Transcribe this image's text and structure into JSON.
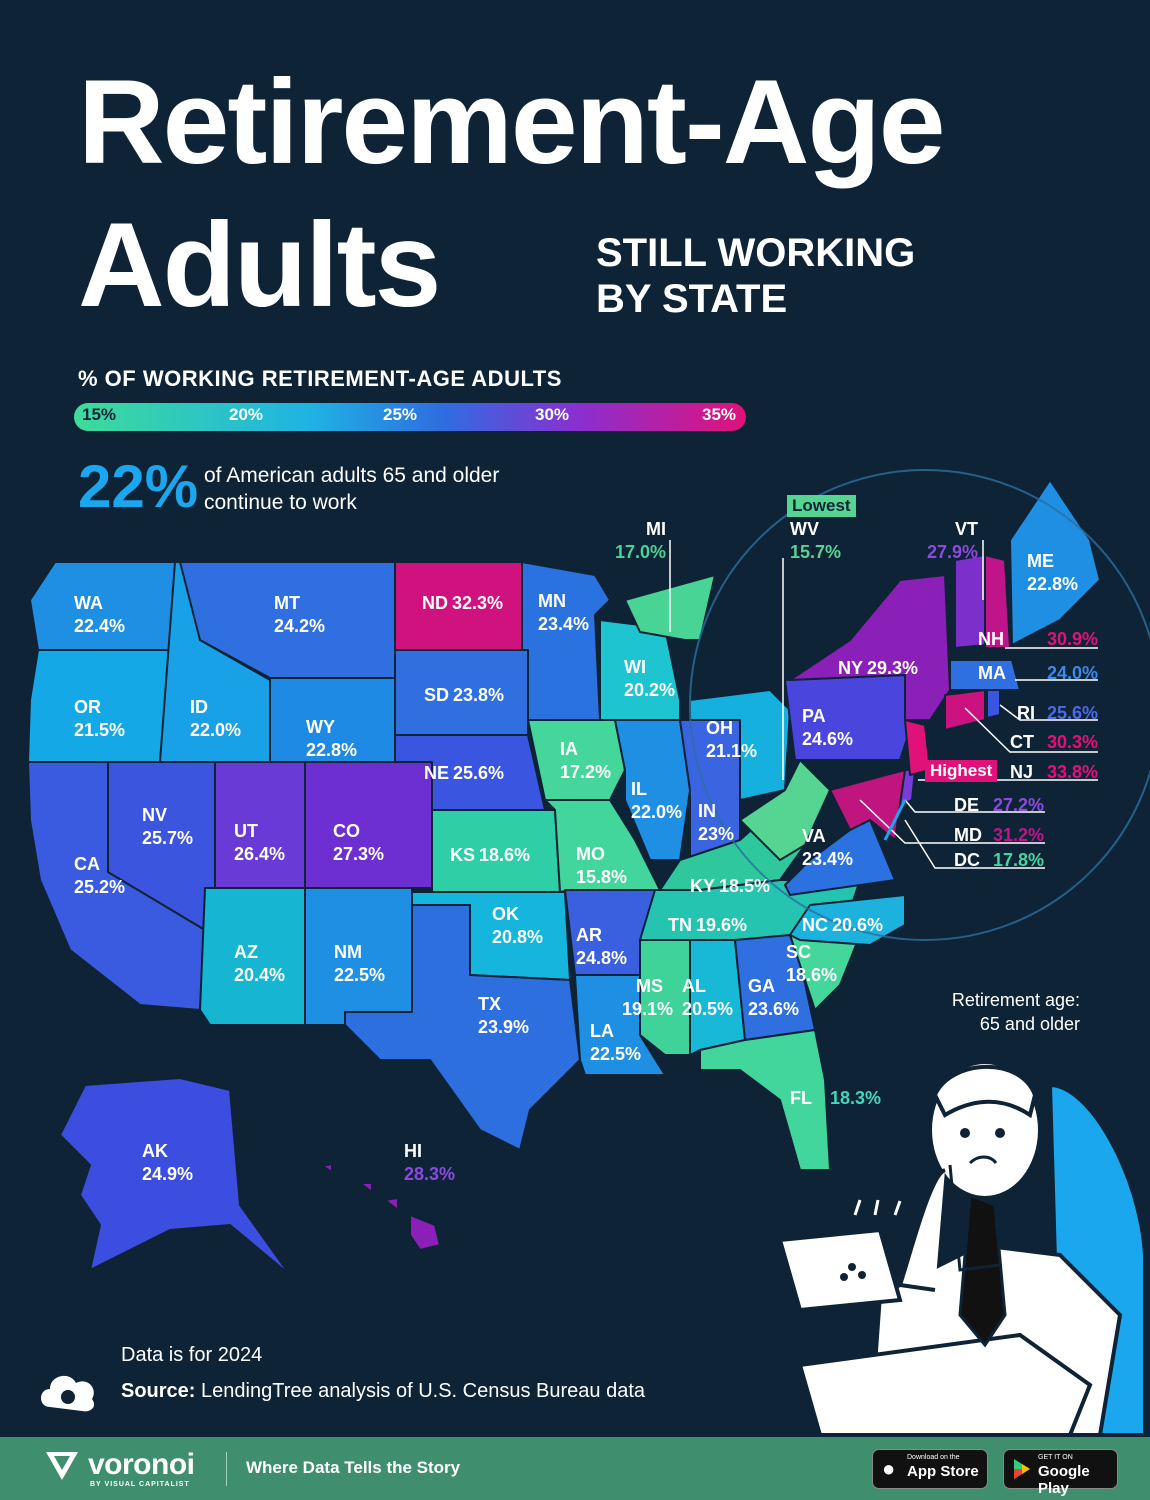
{
  "title_line1": "Retirement-Age",
  "title_line2": "Adults",
  "subtitle_line1": "STILL WORKING",
  "subtitle_line2": "BY STATE",
  "legend": {
    "title": "% OF WORKING RETIREMENT-AGE ADULTS",
    "ticks": [
      "15%",
      "20%",
      "25%",
      "30%",
      "35%"
    ],
    "colors": [
      "#3ddc9a",
      "#1fb3e4",
      "#2f6de0",
      "#8a2fd0",
      "#e0127a"
    ]
  },
  "headline_stat": {
    "value": "22%",
    "text": "of American adults 65 and older continue to work"
  },
  "chart_data": {
    "type": "choropleth map",
    "title": "Retirement-Age Adults Still Working by State",
    "unit": "%",
    "scale_range": [
      15,
      35
    ],
    "states": [
      {
        "abbr": "WA",
        "value": "22.4%"
      },
      {
        "abbr": "OR",
        "value": "21.5%"
      },
      {
        "abbr": "CA",
        "value": "25.2%"
      },
      {
        "abbr": "ID",
        "value": "22.0%"
      },
      {
        "abbr": "MT",
        "value": "24.2%"
      },
      {
        "abbr": "WY",
        "value": "22.8%"
      },
      {
        "abbr": "NV",
        "value": "25.7%"
      },
      {
        "abbr": "UT",
        "value": "26.4%"
      },
      {
        "abbr": "CO",
        "value": "27.3%"
      },
      {
        "abbr": "AZ",
        "value": "20.4%"
      },
      {
        "abbr": "NM",
        "value": "22.5%"
      },
      {
        "abbr": "ND",
        "value": "32.3%"
      },
      {
        "abbr": "SD",
        "value": "23.8%"
      },
      {
        "abbr": "NE",
        "value": "25.6%"
      },
      {
        "abbr": "KS",
        "value": "18.6%"
      },
      {
        "abbr": "OK",
        "value": "20.8%"
      },
      {
        "abbr": "TX",
        "value": "23.9%"
      },
      {
        "abbr": "MN",
        "value": "23.4%"
      },
      {
        "abbr": "IA",
        "value": "17.2%"
      },
      {
        "abbr": "MO",
        "value": "15.8%"
      },
      {
        "abbr": "AR",
        "value": "24.8%"
      },
      {
        "abbr": "LA",
        "value": "22.5%"
      },
      {
        "abbr": "WI",
        "value": "20.2%"
      },
      {
        "abbr": "IL",
        "value": "22.0%"
      },
      {
        "abbr": "MI",
        "value": "17.0%"
      },
      {
        "abbr": "IN",
        "value": "23%"
      },
      {
        "abbr": "OH",
        "value": "21.1%"
      },
      {
        "abbr": "KY",
        "value": "18.5%"
      },
      {
        "abbr": "TN",
        "value": "19.6%"
      },
      {
        "abbr": "MS",
        "value": "19.1%"
      },
      {
        "abbr": "AL",
        "value": "20.5%"
      },
      {
        "abbr": "GA",
        "value": "23.6%"
      },
      {
        "abbr": "FL",
        "value": "18.3%"
      },
      {
        "abbr": "SC",
        "value": "18.6%"
      },
      {
        "abbr": "NC",
        "value": "20.6%"
      },
      {
        "abbr": "VA",
        "value": "23.4%"
      },
      {
        "abbr": "WV",
        "value": "15.7%",
        "tag": "Lowest"
      },
      {
        "abbr": "PA",
        "value": "24.6%"
      },
      {
        "abbr": "NY",
        "value": "29.3%"
      },
      {
        "abbr": "VT",
        "value": "27.9%"
      },
      {
        "abbr": "NH",
        "value": "30.9%"
      },
      {
        "abbr": "ME",
        "value": "22.8%"
      },
      {
        "abbr": "MA",
        "value": "24.0%"
      },
      {
        "abbr": "RI",
        "value": "25.6%"
      },
      {
        "abbr": "CT",
        "value": "30.3%"
      },
      {
        "abbr": "NJ",
        "value": "33.8%",
        "tag": "Highest"
      },
      {
        "abbr": "DE",
        "value": "27.2%"
      },
      {
        "abbr": "MD",
        "value": "31.2%"
      },
      {
        "abbr": "DC",
        "value": "17.8%"
      },
      {
        "abbr": "AK",
        "value": "24.9%"
      },
      {
        "abbr": "HI",
        "value": "28.3%"
      }
    ]
  },
  "annotation_retirement": {
    "line1": "Retirement age:",
    "line2": "65 and older"
  },
  "data_year": "Data is for 2024",
  "source_label": "Source:",
  "source_text": "LendingTree analysis of U.S. Census Bureau data",
  "footer": {
    "brand": "voronoi",
    "brand_sub": "BY VISUAL CAPITALIST",
    "tagline": "Where Data Tells the Story",
    "app_store_small": "Download on the",
    "app_store_big": "App Store",
    "google_small": "GET IT ON",
    "google_big": "Google Play"
  }
}
